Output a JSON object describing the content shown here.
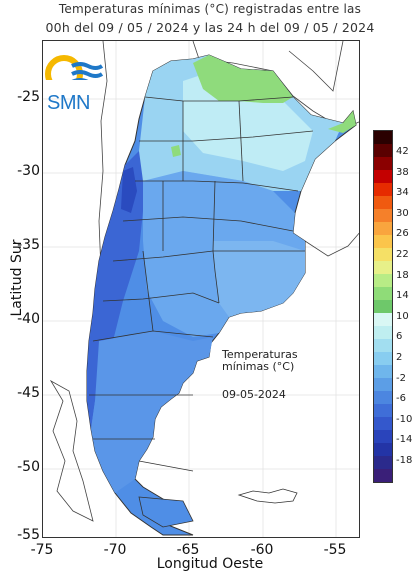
{
  "title_line1": "Temperaturas mínimas (°C) registradas entre las",
  "title_line2": "00h del 09 / 05 / 2024 y las 24 h del 09 / 05 / 2024",
  "logo_text": "SMN",
  "y_axis": {
    "label": "Latitud Sur",
    "ticks": [
      "-25",
      "-30",
      "-35",
      "-40",
      "-45",
      "-50",
      "-55"
    ]
  },
  "x_axis": {
    "label": "Longitud Oeste",
    "ticks": [
      "-75",
      "-70",
      "-65",
      "-60",
      "-55"
    ]
  },
  "map_legend": {
    "title_line1": "Temperaturas",
    "title_line2": "mínimas (°C)",
    "date": "09-05-2024"
  },
  "colorbar": {
    "labels": [
      "42",
      "38",
      "34",
      "30",
      "26",
      "22",
      "18",
      "14",
      "10",
      "6",
      "2",
      "-2",
      "-6",
      "-10",
      "-14",
      "-18"
    ],
    "colors": [
      "#2a0000",
      "#5a0000",
      "#8b0000",
      "#c40000",
      "#e62b00",
      "#f05a10",
      "#f5802a",
      "#f9a53e",
      "#fbc54b",
      "#f5e066",
      "#e7f089",
      "#b8ec86",
      "#8fdc78",
      "#6ec86a",
      "#d9f7f4",
      "#bfeef0",
      "#a2def0",
      "#88cdf0",
      "#6fb6ec",
      "#5c9ee6",
      "#4c86e0",
      "#3f6ed8",
      "#3458cc",
      "#2a44bb",
      "#2334a6",
      "#2b2a8c",
      "#3a1f78"
    ]
  }
}
